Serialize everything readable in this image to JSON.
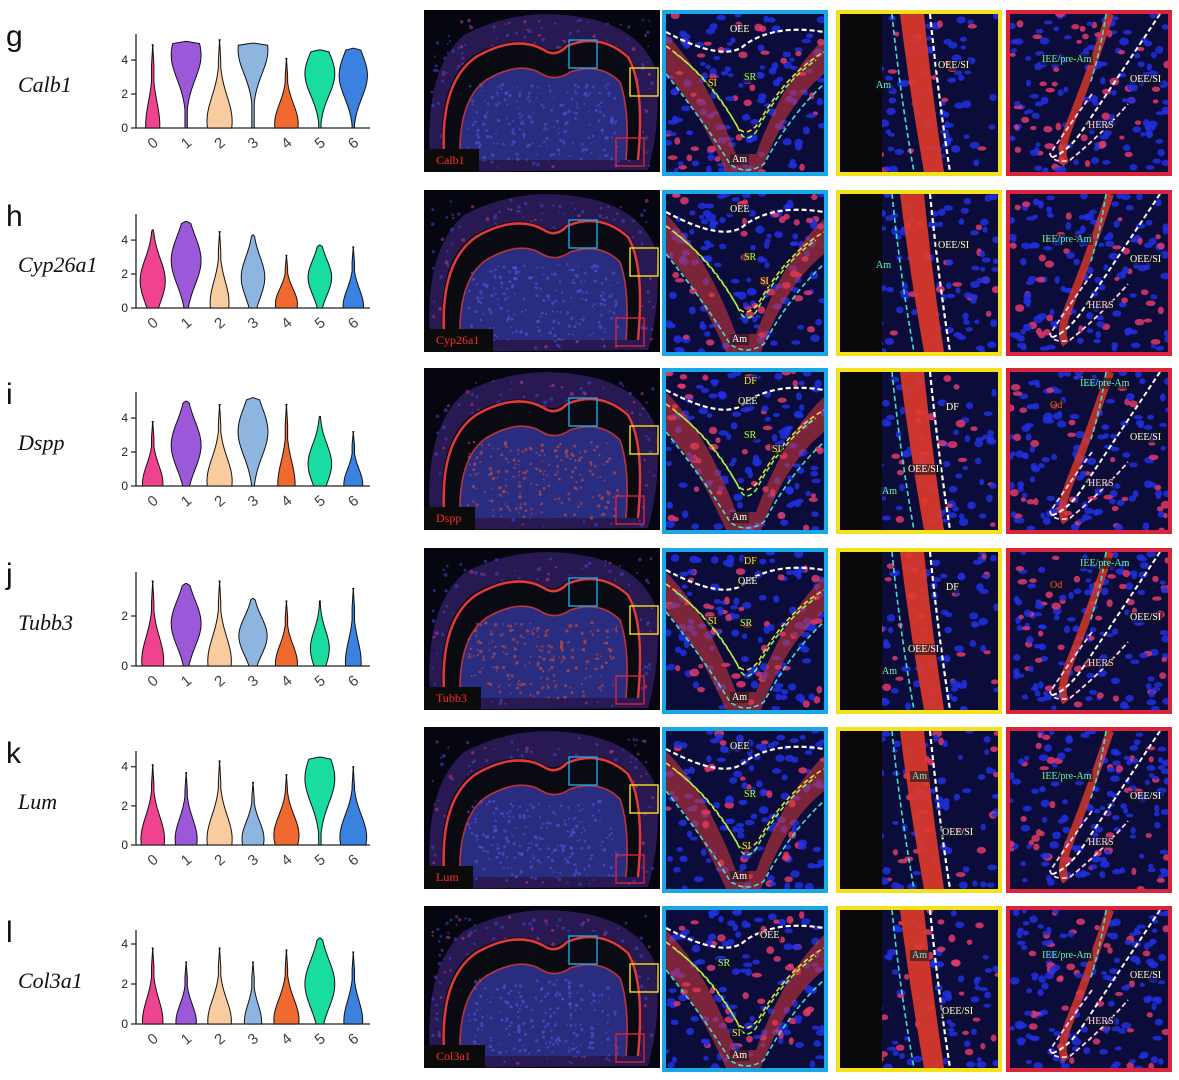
{
  "colors": {
    "clusters": [
      "#f0438f",
      "#9b59d9",
      "#f8cc9e",
      "#8eb4e0",
      "#f0692e",
      "#18dca0",
      "#3b82e0"
    ],
    "box_blue": "#1aa7e8",
    "box_yellow": "#f5e11a",
    "box_red": "#d8243c",
    "tissue_label": "#ff2a2a"
  },
  "rows": [
    {
      "letter": "g",
      "gene": "Calb1",
      "label": "Calb1",
      "zoom_blue": [
        "OEE",
        "SR",
        "SI",
        "Am"
      ],
      "zoom_yellow": [
        "OEE/SI",
        "Am"
      ],
      "zoom_red": [
        "IEE/pre-Am",
        "OEE/SI",
        "HERS"
      ]
    },
    {
      "letter": "h",
      "gene": "Cyp26a1",
      "label": "Cyp26a1",
      "zoom_blue": [
        "OEE",
        "SR",
        "SI",
        "Am"
      ],
      "zoom_yellow": [
        "OEE/SI",
        "Am"
      ],
      "zoom_red": [
        "IEE/pre-Am",
        "OEE/SI",
        "HERS"
      ]
    },
    {
      "letter": "i",
      "gene": "Dspp",
      "label": "Dspp",
      "zoom_blue": [
        "DF",
        "OEE",
        "SR",
        "SI",
        "Am"
      ],
      "zoom_yellow": [
        "DF",
        "OEE/SI",
        "Am"
      ],
      "zoom_red": [
        "IEE/pre-Am",
        "Od",
        "OEE/SI",
        "HERS"
      ]
    },
    {
      "letter": "j",
      "gene": "Tubb3",
      "label": "Tubb3",
      "zoom_blue": [
        "DF",
        "OEE",
        "SI",
        "SR",
        "Am"
      ],
      "zoom_yellow": [
        "DF",
        "OEE/SI",
        "Am"
      ],
      "zoom_red": [
        "IEE/pre-Am",
        "Od",
        "OEE/SI",
        "HERS"
      ]
    },
    {
      "letter": "k",
      "gene": "Lum",
      "label": "Lum",
      "zoom_blue": [
        "OEE",
        "SR",
        "SI",
        "Am"
      ],
      "zoom_yellow": [
        "Am",
        "OEE/SI"
      ],
      "zoom_red": [
        "IEE/pre-Am",
        "OEE/SI",
        "HERS"
      ]
    },
    {
      "letter": "l",
      "gene": "Col3a1",
      "label": "Col3a1",
      "zoom_blue": [
        "OEE",
        "SR",
        "SI",
        "Am"
      ],
      "zoom_yellow": [
        "Am",
        "OEE/SI"
      ],
      "zoom_red": [
        "IEE/pre-Am",
        "OEE/SI",
        "HERS"
      ]
    }
  ],
  "chart_data": [
    {
      "type": "violin",
      "gene": "Calb1",
      "categories": [
        "0",
        "1",
        "2",
        "3",
        "4",
        "5",
        "6"
      ],
      "ylim": [
        0,
        5.3
      ],
      "yticks": [
        "0",
        "2",
        "4"
      ],
      "series": [
        {
          "cluster": "0",
          "max": 4.9,
          "median": 0.3,
          "mode": 0.15,
          "width": 0.45
        },
        {
          "cluster": "1",
          "max": 5.1,
          "median": 3.8,
          "mode": 4.3,
          "width": 0.95
        },
        {
          "cluster": "2",
          "max": 5.2,
          "median": 2.0,
          "mode": 0.4,
          "width": 0.8
        },
        {
          "cluster": "3",
          "max": 5.0,
          "median": 4.4,
          "mode": 4.6,
          "width": 0.95
        },
        {
          "cluster": "4",
          "max": 4.1,
          "median": 0.4,
          "mode": 0.25,
          "width": 0.75
        },
        {
          "cluster": "5",
          "max": 4.6,
          "median": 2.8,
          "mode": 3.2,
          "width": 0.95
        },
        {
          "cluster": "6",
          "max": 4.7,
          "median": 3.0,
          "mode": 3.1,
          "width": 0.9
        }
      ]
    },
    {
      "type": "violin",
      "gene": "Cyp26a1",
      "categories": [
        "0",
        "1",
        "2",
        "3",
        "4",
        "5",
        "6"
      ],
      "ylim": [
        0,
        5.3
      ],
      "yticks": [
        "0",
        "2",
        "4"
      ],
      "series": [
        {
          "cluster": "0",
          "max": 4.6,
          "median": 1.2,
          "mode": 1.6,
          "width": 0.8
        },
        {
          "cluster": "1",
          "max": 5.1,
          "median": 2.6,
          "mode": 2.8,
          "width": 0.95
        },
        {
          "cluster": "2",
          "max": 4.5,
          "median": 0.6,
          "mode": 0.3,
          "width": 0.6
        },
        {
          "cluster": "3",
          "max": 4.3,
          "median": 1.4,
          "mode": 1.8,
          "width": 0.75
        },
        {
          "cluster": "4",
          "max": 3.1,
          "median": 0.2,
          "mode": 0.25,
          "width": 0.7
        },
        {
          "cluster": "5",
          "max": 3.7,
          "median": 1.4,
          "mode": 1.8,
          "width": 0.75
        },
        {
          "cluster": "6",
          "max": 3.6,
          "median": 0.1,
          "mode": 0.1,
          "width": 0.65
        }
      ]
    },
    {
      "type": "violin",
      "gene": "Dspp",
      "categories": [
        "0",
        "1",
        "2",
        "3",
        "4",
        "5",
        "6"
      ],
      "ylim": [
        0,
        5.3
      ],
      "yticks": [
        "0",
        "2",
        "4"
      ],
      "series": [
        {
          "cluster": "0",
          "max": 3.8,
          "median": 0.2,
          "mode": 0.15,
          "width": 0.65
        },
        {
          "cluster": "1",
          "max": 5.0,
          "median": 2.4,
          "mode": 2.4,
          "width": 0.95
        },
        {
          "cluster": "2",
          "max": 4.8,
          "median": 0.6,
          "mode": 0.3,
          "width": 0.8
        },
        {
          "cluster": "3",
          "max": 5.2,
          "median": 2.9,
          "mode": 3.2,
          "width": 0.95
        },
        {
          "cluster": "4",
          "max": 4.8,
          "median": 0.1,
          "mode": 0.1,
          "width": 0.55
        },
        {
          "cluster": "5",
          "max": 4.1,
          "median": 1.5,
          "mode": 1.3,
          "width": 0.75
        },
        {
          "cluster": "6",
          "max": 3.2,
          "median": 0.1,
          "mode": 0.1,
          "width": 0.6
        }
      ]
    },
    {
      "type": "violin",
      "gene": "Tubb3",
      "categories": [
        "0",
        "1",
        "2",
        "3",
        "4",
        "5",
        "6"
      ],
      "ylim": [
        0,
        3.6
      ],
      "yticks": [
        "0",
        "2"
      ],
      "series": [
        {
          "cluster": "0",
          "max": 3.4,
          "median": 0.3,
          "mode": 0.2,
          "width": 0.7
        },
        {
          "cluster": "1",
          "max": 3.3,
          "median": 1.6,
          "mode": 1.7,
          "width": 0.95
        },
        {
          "cluster": "2",
          "max": 3.4,
          "median": 0.4,
          "mode": 0.2,
          "width": 0.75
        },
        {
          "cluster": "3",
          "max": 2.7,
          "median": 1.1,
          "mode": 1.2,
          "width": 0.9
        },
        {
          "cluster": "4",
          "max": 2.6,
          "median": 0.1,
          "mode": 0.1,
          "width": 0.7
        },
        {
          "cluster": "5",
          "max": 2.6,
          "median": 0.7,
          "mode": 0.7,
          "width": 0.6
        },
        {
          "cluster": "6",
          "max": 3.1,
          "median": 0.2,
          "mode": 0.15,
          "width": 0.5
        }
      ]
    },
    {
      "type": "violin",
      "gene": "Lum",
      "categories": [
        "0",
        "1",
        "2",
        "3",
        "4",
        "5",
        "6"
      ],
      "ylim": [
        0,
        4.6
      ],
      "yticks": [
        "0",
        "2",
        "4"
      ],
      "series": [
        {
          "cluster": "0",
          "max": 4.1,
          "median": 0.6,
          "mode": 0.3,
          "width": 0.75
        },
        {
          "cluster": "1",
          "max": 3.7,
          "median": 0.5,
          "mode": 0.3,
          "width": 0.7
        },
        {
          "cluster": "2",
          "max": 4.3,
          "median": 0.8,
          "mode": 0.3,
          "width": 0.8
        },
        {
          "cluster": "3",
          "max": 3.2,
          "median": 0.6,
          "mode": 0.3,
          "width": 0.7
        },
        {
          "cluster": "4",
          "max": 3.6,
          "median": 0.9,
          "mode": 0.5,
          "width": 0.8
        },
        {
          "cluster": "5",
          "max": 4.5,
          "median": 3.3,
          "mode": 3.4,
          "width": 0.95
        },
        {
          "cluster": "6",
          "max": 4.0,
          "median": 0.9,
          "mode": 0.4,
          "width": 0.85
        }
      ]
    },
    {
      "type": "violin",
      "gene": "Col3a1",
      "categories": [
        "0",
        "1",
        "2",
        "3",
        "4",
        "5",
        "6"
      ],
      "ylim": [
        0,
        4.5
      ],
      "yticks": [
        "0",
        "2",
        "4"
      ],
      "series": [
        {
          "cluster": "0",
          "max": 3.8,
          "median": 0.2,
          "mode": 0.15,
          "width": 0.65
        },
        {
          "cluster": "1",
          "max": 3.1,
          "median": 0.15,
          "mode": 0.1,
          "width": 0.65
        },
        {
          "cluster": "2",
          "max": 3.8,
          "median": 0.25,
          "mode": 0.15,
          "width": 0.75
        },
        {
          "cluster": "3",
          "max": 3.1,
          "median": 0.1,
          "mode": 0.1,
          "width": 0.55
        },
        {
          "cluster": "4",
          "max": 3.7,
          "median": 0.3,
          "mode": 0.2,
          "width": 0.8
        },
        {
          "cluster": "5",
          "max": 4.3,
          "median": 2.2,
          "mode": 2.0,
          "width": 0.95
        },
        {
          "cluster": "6",
          "max": 3.6,
          "median": 0.2,
          "mode": 0.15,
          "width": 0.6
        }
      ]
    }
  ]
}
